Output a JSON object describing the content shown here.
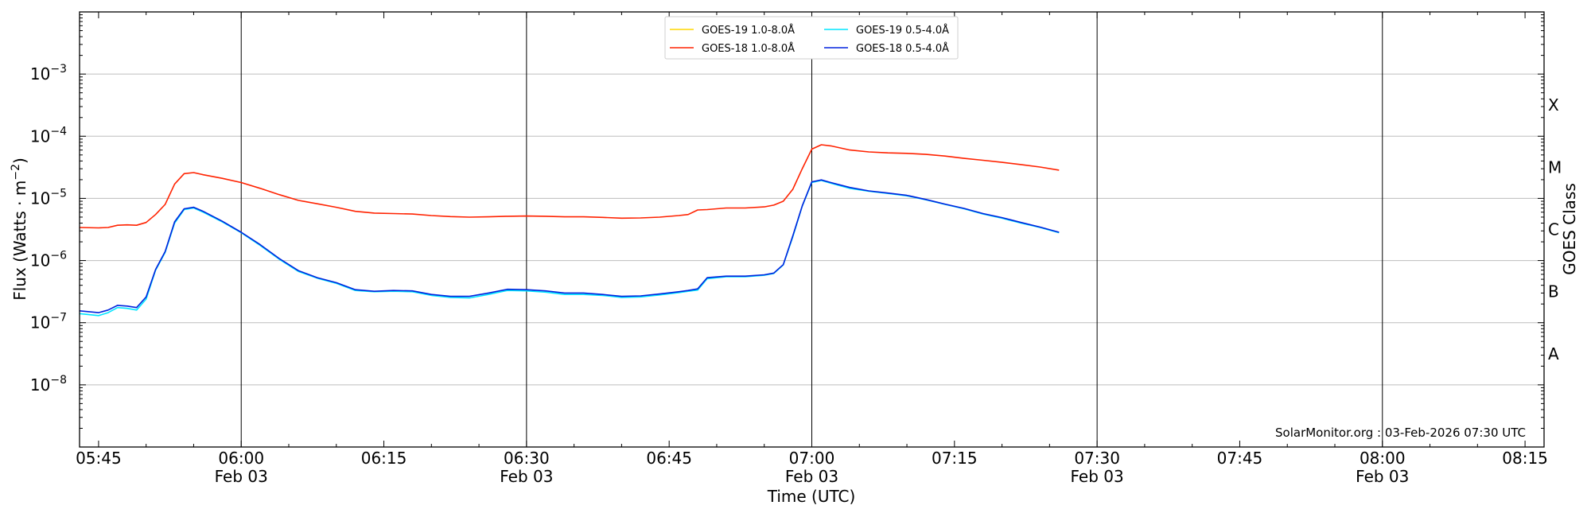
{
  "chart_data": {
    "type": "line",
    "xlabel": "Time (UTC)",
    "ylabel_main": "Flux (Watts · m",
    "ylabel_exp": "−2",
    "ylabel_close": ")",
    "y2label": "GOES Class",
    "yscale": "log",
    "ylim": [
      1e-09,
      0.01
    ],
    "xlim": [
      "05:43",
      "08:17"
    ],
    "x_ticks": [
      {
        "time": "05:45",
        "label": "05:45",
        "date": ""
      },
      {
        "time": "06:00",
        "label": "06:00",
        "date": "Feb 03"
      },
      {
        "time": "06:15",
        "label": "06:15",
        "date": ""
      },
      {
        "time": "06:30",
        "label": "06:30",
        "date": "Feb 03"
      },
      {
        "time": "06:45",
        "label": "06:45",
        "date": ""
      },
      {
        "time": "07:00",
        "label": "07:00",
        "date": "Feb 03"
      },
      {
        "time": "07:15",
        "label": "07:15",
        "date": ""
      },
      {
        "time": "07:30",
        "label": "07:30",
        "date": "Feb 03"
      },
      {
        "time": "07:45",
        "label": "07:45",
        "date": ""
      },
      {
        "time": "08:00",
        "label": "08:00",
        "date": "Feb 03"
      },
      {
        "time": "08:15",
        "label": "08:15",
        "date": ""
      }
    ],
    "vertical_lines": [
      "06:00",
      "06:30",
      "07:00",
      "07:30",
      "08:00"
    ],
    "y_ticks": [
      {
        "value": 1e-08,
        "base": "10",
        "exp": "−8"
      },
      {
        "value": 1e-07,
        "base": "10",
        "exp": "−7"
      },
      {
        "value": 1e-06,
        "base": "10",
        "exp": "−6"
      },
      {
        "value": 1e-05,
        "base": "10",
        "exp": "−5"
      },
      {
        "value": 0.0001,
        "base": "10",
        "exp": "−4"
      },
      {
        "value": 0.001,
        "base": "10",
        "exp": "−3"
      }
    ],
    "grid_y": true,
    "goes_classes": [
      {
        "label": "A",
        "value": 3.16e-08
      },
      {
        "label": "B",
        "value": 3.16e-07
      },
      {
        "label": "C",
        "value": 3.16e-06
      },
      {
        "label": "M",
        "value": 3.16e-05
      },
      {
        "label": "X",
        "value": 0.000316
      }
    ],
    "legend_position": "top-center",
    "credit": "SolarMonitor.org : 03-Feb-2026 07:30 UTC",
    "series": [
      {
        "name": "GOES-19 1.0-8.0Å",
        "color": "#ffd700",
        "x": [],
        "y": []
      },
      {
        "name": "GOES-19 0.5-4.0Å",
        "color": "#00e5ff",
        "x": [
          "05:43",
          "05:45",
          "05:46",
          "05:47",
          "05:48",
          "05:49",
          "05:50",
          "05:51",
          "05:52",
          "05:53",
          "05:54",
          "05:55",
          "05:56",
          "05:58",
          "06:00",
          "06:02",
          "06:04",
          "06:06",
          "06:08",
          "06:10",
          "06:12",
          "06:14",
          "06:16",
          "06:18",
          "06:20",
          "06:22",
          "06:24",
          "06:26",
          "06:28",
          "06:30",
          "06:32",
          "06:34",
          "06:36",
          "06:38",
          "06:40",
          "06:42",
          "06:44",
          "06:46",
          "06:47",
          "06:48",
          "06:49",
          "06:51",
          "06:53",
          "06:55",
          "06:56",
          "06:57",
          "06:58",
          "06:59",
          "07:00",
          "07:01",
          "07:02",
          "07:04",
          "07:06",
          "07:08",
          "07:10",
          "07:12",
          "07:14",
          "07:16",
          "07:18",
          "07:20",
          "07:22",
          "07:24",
          "07:26"
        ],
        "y": [
          1.4e-07,
          1.3e-07,
          1.45e-07,
          1.75e-07,
          1.7e-07,
          1.6e-07,
          2.4e-07,
          7e-07,
          1.35e-06,
          4e-06,
          6.6e-06,
          7e-06,
          6e-06,
          4.2e-06,
          2.8e-06,
          1.75e-06,
          1.05e-06,
          6.7e-07,
          5.2e-07,
          4.3e-07,
          3.3e-07,
          3.15e-07,
          3.2e-07,
          3.15e-07,
          2.75e-07,
          2.55e-07,
          2.5e-07,
          2.85e-07,
          3.3e-07,
          3.25e-07,
          3.1e-07,
          2.85e-07,
          2.85e-07,
          2.75e-07,
          2.55e-07,
          2.6e-07,
          2.8e-07,
          3.05e-07,
          3.2e-07,
          3.35e-07,
          5.1e-07,
          5.5e-07,
          5.5e-07,
          5.8e-07,
          6.2e-07,
          8.5e-07,
          2.4e-06,
          7.5e-06,
          1.8e-05,
          1.95e-05,
          1.75e-05,
          1.45e-05,
          1.3e-05,
          1.2e-05,
          1.1e-05,
          9.5e-06,
          8e-06,
          6.8e-06,
          5.6e-06,
          4.8e-06,
          4e-06,
          3.4e-06,
          2.8e-06
        ]
      },
      {
        "name": "GOES-18 1.0-8.0Å",
        "color": "#ff2200",
        "x": [
          "05:43",
          "05:45",
          "05:46",
          "05:47",
          "05:48",
          "05:49",
          "05:50",
          "05:51",
          "05:52",
          "05:53",
          "05:54",
          "05:55",
          "05:56",
          "05:58",
          "06:00",
          "06:02",
          "06:04",
          "06:06",
          "06:08",
          "06:10",
          "06:12",
          "06:14",
          "06:16",
          "06:18",
          "06:20",
          "06:22",
          "06:24",
          "06:26",
          "06:28",
          "06:30",
          "06:32",
          "06:34",
          "06:36",
          "06:38",
          "06:40",
          "06:42",
          "06:44",
          "06:46",
          "06:47",
          "06:48",
          "06:49",
          "06:51",
          "06:53",
          "06:55",
          "06:56",
          "06:57",
          "06:58",
          "06:59",
          "07:00",
          "07:01",
          "07:02",
          "07:04",
          "07:06",
          "07:08",
          "07:10",
          "07:12",
          "07:14",
          "07:16",
          "07:18",
          "07:20",
          "07:22",
          "07:24",
          "07:26"
        ],
        "y": [
          3.4e-06,
          3.35e-06,
          3.4e-06,
          3.7e-06,
          3.75e-06,
          3.7e-06,
          4.1e-06,
          5.5e-06,
          8e-06,
          1.7e-05,
          2.5e-05,
          2.6e-05,
          2.4e-05,
          2.1e-05,
          1.8e-05,
          1.45e-05,
          1.15e-05,
          9.3e-06,
          8.2e-06,
          7.2e-06,
          6.2e-06,
          5.8e-06,
          5.7e-06,
          5.6e-06,
          5.3e-06,
          5.1e-06,
          5e-06,
          5.05e-06,
          5.15e-06,
          5.2e-06,
          5.15e-06,
          5.05e-06,
          5.05e-06,
          4.95e-06,
          4.8e-06,
          4.85e-06,
          5e-06,
          5.3e-06,
          5.5e-06,
          6.5e-06,
          6.6e-06,
          7e-06,
          7e-06,
          7.3e-06,
          7.8e-06,
          9e-06,
          1.4e-05,
          3e-05,
          6.2e-05,
          7.3e-05,
          7e-05,
          6e-05,
          5.6e-05,
          5.4e-05,
          5.3e-05,
          5.1e-05,
          4.8e-05,
          4.4e-05,
          4.1e-05,
          3.8e-05,
          3.5e-05,
          3.2e-05,
          2.85e-05
        ]
      },
      {
        "name": "GOES-18 0.5-4.0Å",
        "color": "#0022dd",
        "x": [
          "05:43",
          "05:45",
          "05:46",
          "05:47",
          "05:48",
          "05:49",
          "05:50",
          "05:51",
          "05:52",
          "05:53",
          "05:54",
          "05:55",
          "05:56",
          "05:58",
          "06:00",
          "06:02",
          "06:04",
          "06:06",
          "06:08",
          "06:10",
          "06:12",
          "06:14",
          "06:16",
          "06:18",
          "06:20",
          "06:22",
          "06:24",
          "06:26",
          "06:28",
          "06:30",
          "06:32",
          "06:34",
          "06:36",
          "06:38",
          "06:40",
          "06:42",
          "06:44",
          "06:46",
          "06:47",
          "06:48",
          "06:49",
          "06:51",
          "06:53",
          "06:55",
          "06:56",
          "06:57",
          "06:58",
          "06:59",
          "07:00",
          "07:01",
          "07:02",
          "07:04",
          "07:06",
          "07:08",
          "07:10",
          "07:12",
          "07:14",
          "07:16",
          "07:18",
          "07:20",
          "07:22",
          "07:24",
          "07:26"
        ],
        "y": [
          1.55e-07,
          1.45e-07,
          1.6e-07,
          1.9e-07,
          1.85e-07,
          1.75e-07,
          2.6e-07,
          7.2e-07,
          1.4e-06,
          4.2e-06,
          6.8e-06,
          7.2e-06,
          6.2e-06,
          4.3e-06,
          2.85e-06,
          1.8e-06,
          1.08e-06,
          6.9e-07,
          5.3e-07,
          4.4e-07,
          3.4e-07,
          3.2e-07,
          3.3e-07,
          3.25e-07,
          2.85e-07,
          2.65e-07,
          2.65e-07,
          3e-07,
          3.45e-07,
          3.4e-07,
          3.25e-07,
          3e-07,
          3e-07,
          2.85e-07,
          2.65e-07,
          2.7e-07,
          2.9e-07,
          3.15e-07,
          3.3e-07,
          3.5e-07,
          5.3e-07,
          5.6e-07,
          5.6e-07,
          5.9e-07,
          6.3e-07,
          8.6e-07,
          2.5e-06,
          7.6e-06,
          1.85e-05,
          1.98e-05,
          1.8e-05,
          1.5e-05,
          1.32e-05,
          1.22e-05,
          1.12e-05,
          9.6e-06,
          8.1e-06,
          6.9e-06,
          5.7e-06,
          4.9e-06,
          4.1e-06,
          3.45e-06,
          2.85e-06
        ]
      }
    ]
  }
}
